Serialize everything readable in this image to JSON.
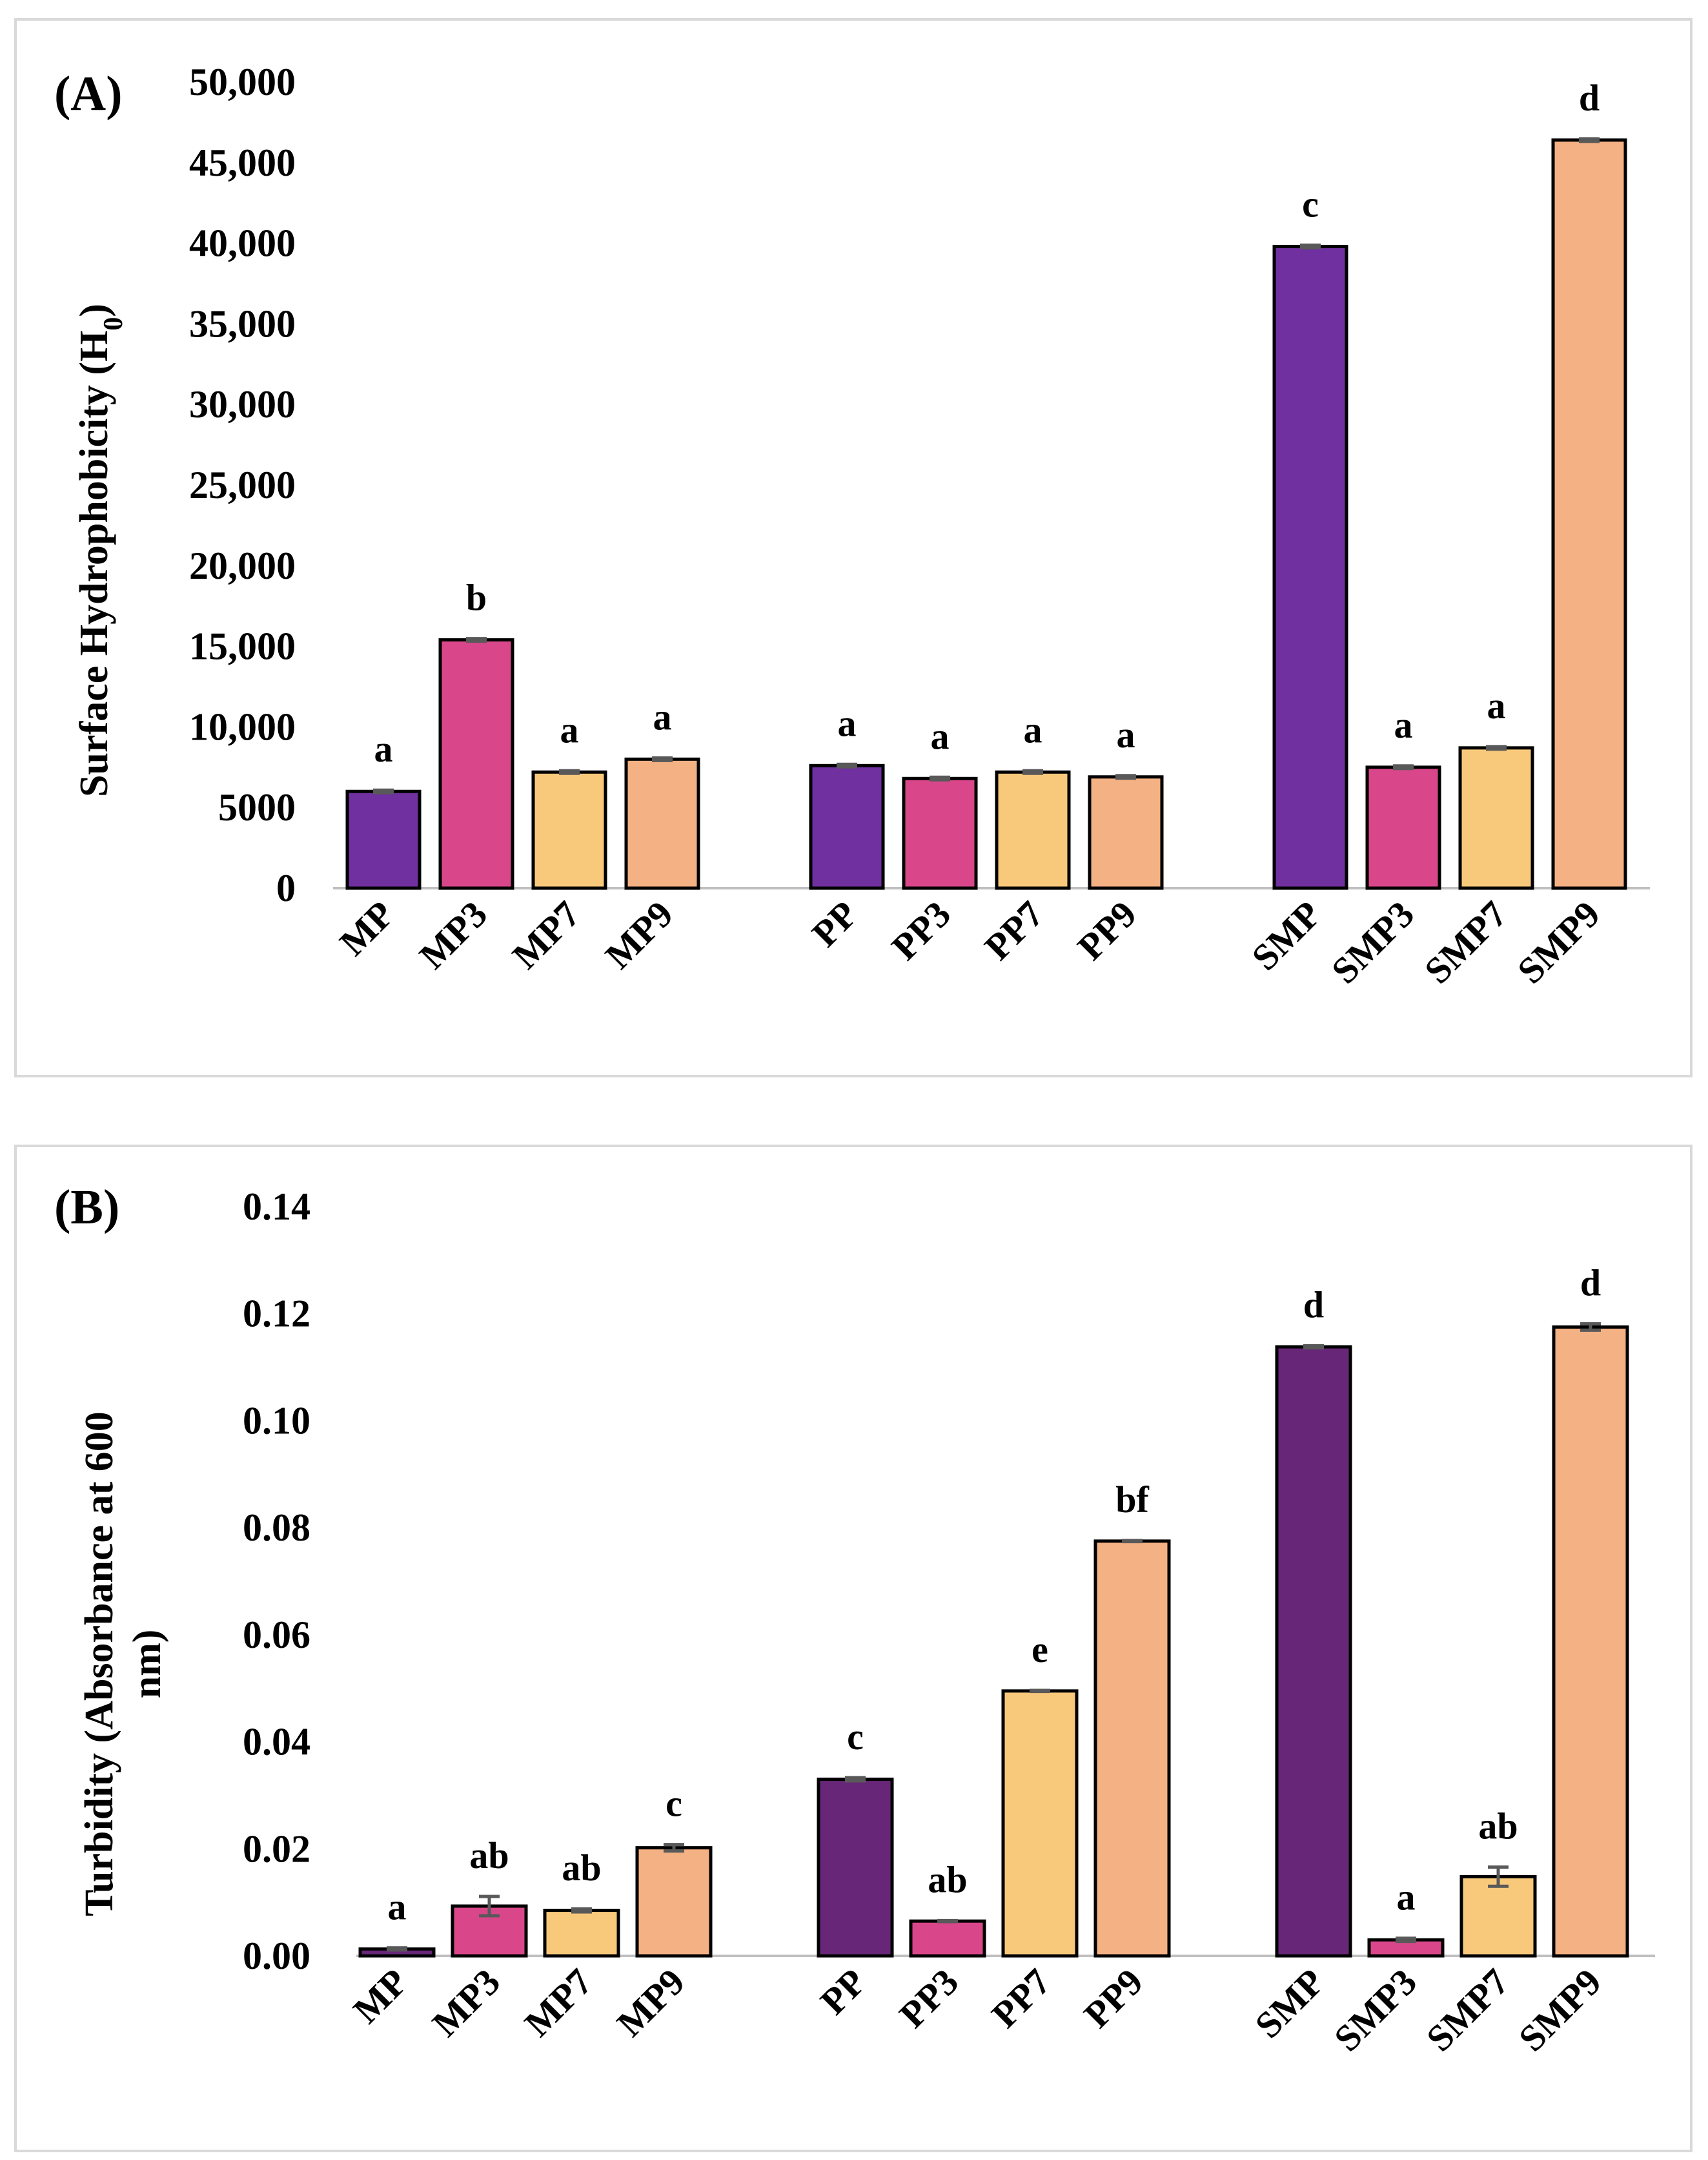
{
  "colors": {
    "purple_a": "#7030a0",
    "purple_b": "#672678",
    "pink": "#d9478a",
    "yellow": "#f9c97b",
    "peach": "#f4b183",
    "error_bar": "#595959",
    "axis": "#bfbfbf",
    "border": "#d9d9d9"
  },
  "chart_data": [
    {
      "type": "bar",
      "panel_label": "(A)",
      "ylabel": "Surface Hydrophobicity (H",
      "ylabel_subscript": "0",
      "ylabel_close": ")",
      "ylim": [
        0,
        50000
      ],
      "yticks": [
        0,
        5000,
        10000,
        15000,
        20000,
        25000,
        30000,
        35000,
        40000,
        45000,
        50000
      ],
      "ytick_labels": [
        "0",
        "5000",
        "10,000",
        "15,000",
        "20,000",
        "25,000",
        "30,000",
        "35,000",
        "40,000",
        "45,000",
        "50,000"
      ],
      "grid": false,
      "groups": [
        {
          "name": "MP group",
          "bars": [
            {
              "category": "MP",
              "value": 6000,
              "error": 80,
              "letter": "a",
              "color": "#7030a0"
            },
            {
              "category": "MP3",
              "value": 15400,
              "error": 80,
              "letter": "b",
              "color": "#d9478a"
            },
            {
              "category": "MP7",
              "value": 7200,
              "error": 80,
              "letter": "a",
              "color": "#f9c97b"
            },
            {
              "category": "MP9",
              "value": 8000,
              "error": 80,
              "letter": "a",
              "color": "#f4b183"
            }
          ]
        },
        {
          "name": "PP group",
          "bars": [
            {
              "category": "PP",
              "value": 7600,
              "error": 80,
              "letter": "a",
              "color": "#7030a0"
            },
            {
              "category": "PP3",
              "value": 6800,
              "error": 80,
              "letter": "a",
              "color": "#d9478a"
            },
            {
              "category": "PP7",
              "value": 7200,
              "error": 80,
              "letter": "a",
              "color": "#f9c97b"
            },
            {
              "category": "PP9",
              "value": 6900,
              "error": 80,
              "letter": "a",
              "color": "#f4b183"
            }
          ]
        },
        {
          "name": "SMP group",
          "bars": [
            {
              "category": "SMP",
              "value": 39800,
              "error": 80,
              "letter": "c",
              "color": "#7030a0"
            },
            {
              "category": "SMP3",
              "value": 7500,
              "error": 80,
              "letter": "a",
              "color": "#d9478a"
            },
            {
              "category": "SMP7",
              "value": 8700,
              "error": 80,
              "letter": "a",
              "color": "#f9c97b"
            },
            {
              "category": "SMP9",
              "value": 46400,
              "error": 80,
              "letter": "d",
              "color": "#f4b183"
            }
          ]
        }
      ]
    },
    {
      "type": "bar",
      "panel_label": "(B)",
      "ylabel": "Turbidity (Absorbance at 600",
      "ylabel_line2": "nm)",
      "ylim": [
        0,
        0.14
      ],
      "yticks": [
        0,
        0.02,
        0.04,
        0.06,
        0.08,
        0.1,
        0.12,
        0.14
      ],
      "ytick_labels": [
        "0.00",
        "0.02",
        "0.04",
        "0.06",
        "0.08",
        "0.10",
        "0.12",
        "0.14"
      ],
      "grid": false,
      "groups": [
        {
          "name": "MP group",
          "bars": [
            {
              "category": "MP",
              "value": 0.0013,
              "error": 0.0002,
              "letter": "a",
              "color": "#672678"
            },
            {
              "category": "MP3",
              "value": 0.0093,
              "error": 0.0018,
              "letter": "ab",
              "color": "#d9478a"
            },
            {
              "category": "MP7",
              "value": 0.0085,
              "error": 0.0003,
              "letter": "ab",
              "color": "#f9c97b"
            },
            {
              "category": "MP9",
              "value": 0.0202,
              "error": 0.0006,
              "letter": "c",
              "color": "#f4b183"
            }
          ]
        },
        {
          "name": "PP group",
          "bars": [
            {
              "category": "PP",
              "value": 0.033,
              "error": 0.0003,
              "letter": "c",
              "color": "#672678"
            },
            {
              "category": "PP3",
              "value": 0.0065,
              "error": 0.0001,
              "letter": "ab",
              "color": "#d9478a"
            },
            {
              "category": "PP7",
              "value": 0.0495,
              "error": 0.0001,
              "letter": "e",
              "color": "#f9c97b"
            },
            {
              "category": "PP9",
              "value": 0.0775,
              "error": 0.0001,
              "letter": "bf",
              "color": "#f4b183"
            }
          ]
        },
        {
          "name": "SMP group",
          "bars": [
            {
              "category": "SMP",
              "value": 0.1138,
              "error": 0.0002,
              "letter": "d",
              "color": "#672678"
            },
            {
              "category": "SMP3",
              "value": 0.003,
              "error": 0.0003,
              "letter": "a",
              "color": "#d9478a"
            },
            {
              "category": "SMP7",
              "value": 0.0148,
              "error": 0.0018,
              "letter": "ab",
              "color": "#f9c97b"
            },
            {
              "category": "SMP9",
              "value": 0.1175,
              "error": 0.0006,
              "letter": "d",
              "color": "#f4b183"
            }
          ]
        }
      ]
    }
  ]
}
